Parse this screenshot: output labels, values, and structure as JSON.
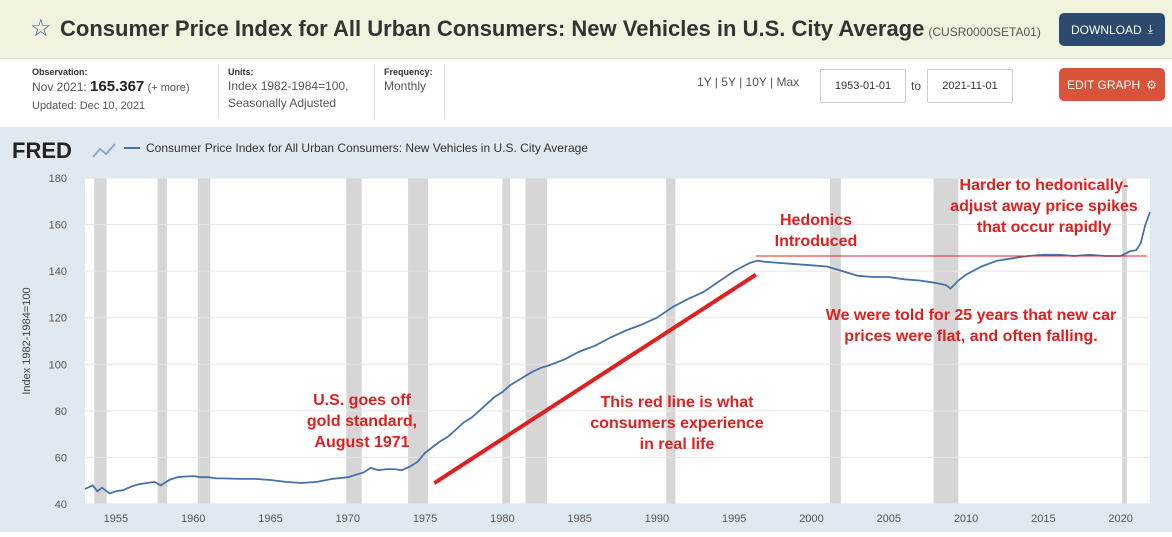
{
  "header": {
    "title": "Consumer Price Index for All Urban Consumers: New Vehicles in U.S. City Average",
    "series_id": "(CUSR0000SETA01)",
    "download_label": "DOWNLOAD",
    "edit_label": "EDIT GRAPH"
  },
  "meta": {
    "observation_label": "Observation:",
    "observation_date": "Nov 2021:",
    "observation_value": "165.367",
    "observation_more": "(+ more)",
    "updated": "Updated: Dec 10, 2021",
    "units_label": "Units:",
    "units_line1": "Index 1982-1984=100,",
    "units_line2": "Seasonally Adjusted",
    "frequency_label": "Frequency:",
    "frequency_value": "Monthly"
  },
  "controls": {
    "range_1y": "1Y",
    "range_5y": "5Y",
    "range_10y": "10Y",
    "range_max": "Max",
    "start_date": "1953-01-01",
    "to_label": "to",
    "end_date": "2021-11-01"
  },
  "colors": {
    "line": "#4572a7",
    "red": "#e02020",
    "recession": "#d6d6d6",
    "plot_bg": "#ffffff",
    "frame_bg": "#e1e9f0"
  },
  "chart_data": {
    "type": "line",
    "brand": "FRED",
    "legend": "Consumer Price Index for All Urban Consumers: New Vehicles in U.S. City Average",
    "ylabel": "Index 1982-1984=100",
    "ylim": [
      40,
      180
    ],
    "xlim": [
      1953.0,
      2021.9
    ],
    "yticks": [
      40,
      60,
      80,
      100,
      120,
      140,
      160,
      180
    ],
    "xticks": [
      1955,
      1960,
      1965,
      1970,
      1975,
      1980,
      1985,
      1990,
      1995,
      2000,
      2005,
      2010,
      2015,
      2020
    ],
    "grid": true,
    "recessions": [
      [
        1953.6,
        1954.4
      ],
      [
        1957.7,
        1958.3
      ],
      [
        1960.3,
        1961.1
      ],
      [
        1969.9,
        1970.9
      ],
      [
        1973.9,
        1975.2
      ],
      [
        1980.0,
        1980.5
      ],
      [
        1981.5,
        1982.9
      ],
      [
        1990.6,
        1991.2
      ],
      [
        2001.2,
        2001.9
      ],
      [
        2007.9,
        2009.5
      ],
      [
        2020.1,
        2020.4
      ]
    ],
    "series": [
      {
        "name": "Consumer Price Index for All Urban Consumers: New Vehicles in U.S. City Average",
        "x": [
          1953.0,
          1953.5,
          1953.8,
          1954.1,
          1954.6,
          1955.0,
          1955.5,
          1956.0,
          1956.5,
          1957.0,
          1957.5,
          1957.9,
          1958.5,
          1959.0,
          1959.5,
          1960.0,
          1960.5,
          1961.0,
          1961.5,
          1962.0,
          1963.0,
          1964.0,
          1965.0,
          1966.0,
          1967.0,
          1968.0,
          1969.0,
          1970.0,
          1970.5,
          1971.0,
          1971.5,
          1972.0,
          1972.5,
          1973.0,
          1973.5,
          1974.0,
          1974.5,
          1975.0,
          1975.5,
          1976.0,
          1976.5,
          1977.0,
          1977.5,
          1978.0,
          1978.5,
          1979.0,
          1979.5,
          1980.0,
          1980.5,
          1981.0,
          1981.5,
          1982.0,
          1982.5,
          1983.0,
          1984.0,
          1985.0,
          1986.0,
          1987.0,
          1988.0,
          1989.0,
          1990.0,
          1991.0,
          1992.0,
          1993.0,
          1994.0,
          1995.0,
          1996.0,
          1996.5,
          1997.0,
          1998.0,
          1999.0,
          2000.0,
          2001.0,
          2002.0,
          2003.0,
          2004.0,
          2005.0,
          2006.0,
          2007.0,
          2008.0,
          2008.7,
          2009.0,
          2009.5,
          2010.0,
          2011.0,
          2012.0,
          2013.0,
          2014.0,
          2015.0,
          2016.0,
          2017.0,
          2018.0,
          2019.0,
          2020.0,
          2020.6,
          2021.0,
          2021.3,
          2021.6,
          2021.9
        ],
        "y": [
          46.5,
          48.0,
          45.5,
          47.0,
          44.5,
          45.5,
          46.0,
          47.5,
          48.5,
          49.0,
          49.5,
          48.0,
          50.5,
          51.5,
          51.8,
          52.0,
          51.5,
          51.5,
          51.0,
          51.0,
          50.8,
          50.8,
          50.3,
          49.5,
          49.0,
          49.5,
          50.8,
          51.5,
          52.5,
          53.5,
          55.5,
          54.5,
          55.0,
          55.0,
          54.5,
          56.0,
          58.0,
          62.0,
          64.5,
          67.0,
          69.0,
          72.0,
          75.0,
          77.0,
          80.0,
          83.0,
          86.0,
          88.0,
          91.0,
          93.0,
          95.0,
          97.0,
          98.5,
          99.5,
          102.0,
          105.5,
          108.0,
          111.5,
          114.5,
          117.0,
          120.0,
          124.5,
          128.0,
          131.0,
          135.5,
          140.0,
          143.5,
          144.5,
          144.0,
          143.5,
          143.0,
          142.5,
          142.0,
          140.0,
          138.0,
          137.5,
          137.5,
          136.5,
          136.0,
          135.0,
          134.0,
          132.5,
          136.0,
          138.5,
          142.0,
          144.5,
          145.5,
          146.5,
          147.0,
          147.0,
          146.5,
          147.0,
          146.5,
          146.5,
          148.5,
          149.0,
          152.0,
          160.0,
          165.4
        ]
      }
    ],
    "annotations": {
      "hedonics": "Hedonics\nIntroduced",
      "gold": "U.S. goes off\ngold standard,\nAugust 1971",
      "redline": "This red line is what\nconsumers experience\nin real life",
      "flat": "We were told for 25 years that new car\nprices were flat, and often falling.",
      "harder": "Harder to hedonically-\nadjust away price spikes\nthat occur rapidly"
    },
    "red_trend": {
      "x": [
        1975.6,
        1996.4
      ],
      "y": [
        49,
        138.5
      ]
    },
    "red_flat": {
      "x": [
        1996.4,
        2021.7
      ],
      "y": [
        146.5,
        146.5
      ]
    }
  }
}
